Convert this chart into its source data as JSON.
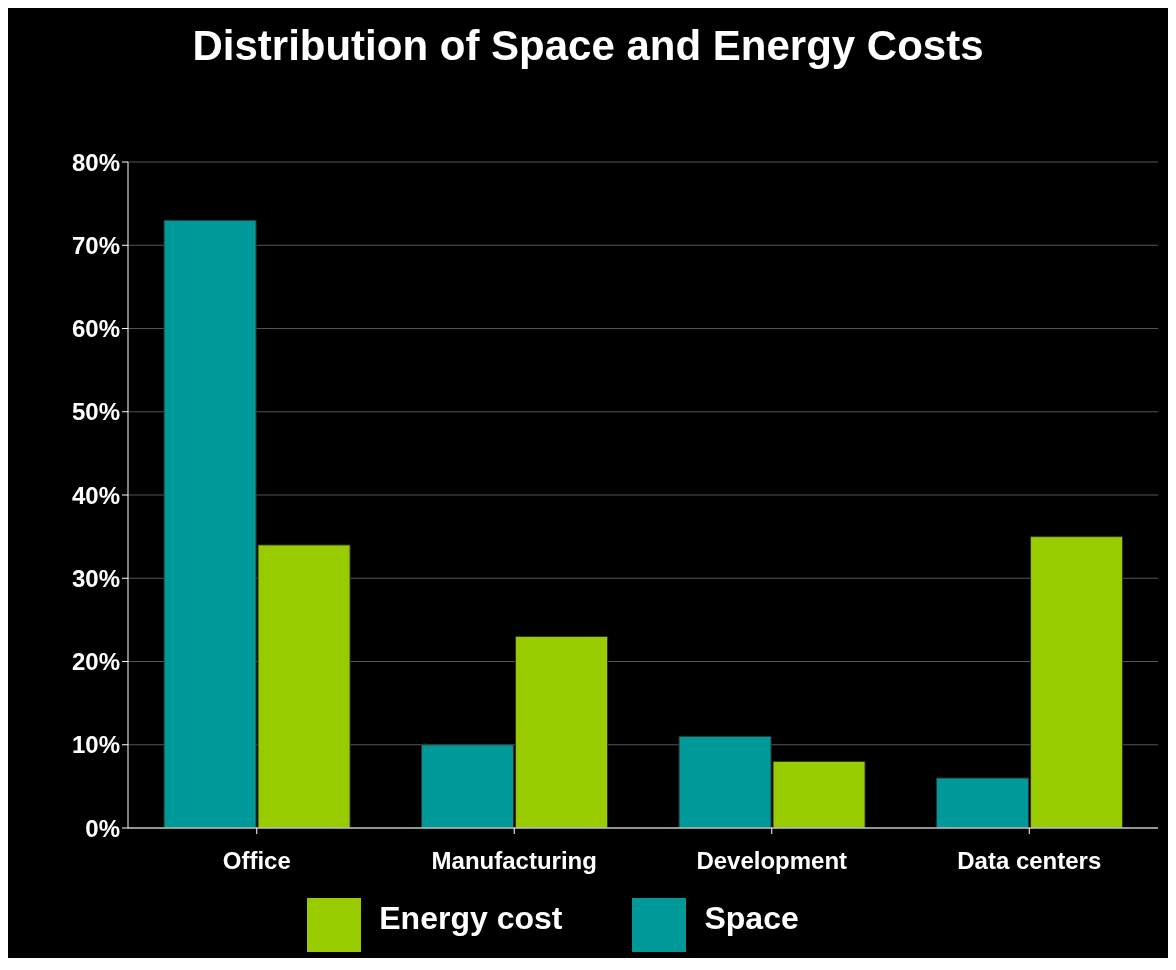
{
  "chart_data": {
    "type": "bar",
    "title": "Distribution of Space and Energy Costs",
    "categories": [
      "Office",
      "Manufacturing",
      "Development",
      "Data centers"
    ],
    "series": [
      {
        "name": "Space",
        "color": "#009999",
        "values": [
          73,
          10,
          11,
          6
        ]
      },
      {
        "name": "Energy cost",
        "color": "#99cc00",
        "values": [
          34,
          23,
          8,
          35
        ]
      }
    ],
    "ylim": [
      0,
      80
    ],
    "yticks": [
      {
        "value": 0,
        "label": "0%"
      },
      {
        "value": 10,
        "label": "10%"
      },
      {
        "value": 20,
        "label": "20%"
      },
      {
        "value": 30,
        "label": "30%"
      },
      {
        "value": 40,
        "label": "40%"
      },
      {
        "value": 50,
        "label": "50%"
      },
      {
        "value": 60,
        "label": "60%"
      },
      {
        "value": 70,
        "label": "70%"
      },
      {
        "value": 80,
        "label": "80%"
      }
    ],
    "grid": "y",
    "legend": "bottom"
  }
}
